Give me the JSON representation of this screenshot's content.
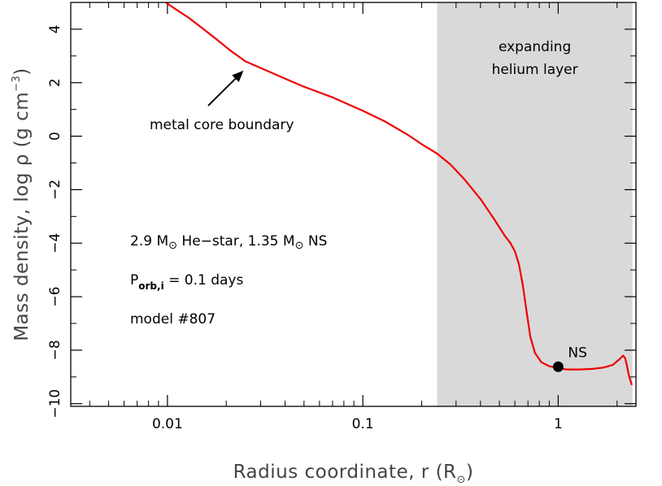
{
  "chart_data": {
    "type": "line",
    "xscale": "log",
    "xlim": [
      0.0032,
      2.5
    ],
    "ylim": [
      -10.1,
      5.0
    ],
    "xlabel": "Radius coordinate, r  (R",
    "xlabel_unit_sub": "⊙",
    "xlabel_close": ")",
    "ylabel": "Mass density, log ρ   (g cm",
    "ylabel_sup": "−3",
    "ylabel_close": ")",
    "x_ticks_major": [
      {
        "value": 0.01,
        "label": "0.01"
      },
      {
        "value": 0.1,
        "label": "0.1"
      },
      {
        "value": 1,
        "label": "1"
      }
    ],
    "y_ticks_major": [
      {
        "value": 4,
        "label": "4"
      },
      {
        "value": 2,
        "label": "2"
      },
      {
        "value": 0,
        "label": "0"
      },
      {
        "value": -2,
        "label": "−2"
      },
      {
        "value": -4,
        "label": "−4"
      },
      {
        "value": -6,
        "label": "−6"
      },
      {
        "value": -8,
        "label": "−8"
      },
      {
        "value": -10,
        "label": "−10"
      }
    ],
    "series": [
      {
        "color": "#ee0000",
        "x": [
          0.0098,
          0.011,
          0.013,
          0.015,
          0.018,
          0.021,
          0.024,
          0.025,
          0.03,
          0.04,
          0.05,
          0.07,
          0.1,
          0.13,
          0.17,
          0.2,
          0.24,
          0.28,
          0.33,
          0.4,
          0.47,
          0.53,
          0.57,
          0.6,
          0.63,
          0.66,
          0.69,
          0.72,
          0.76,
          0.82,
          0.9,
          0.97,
          1.02,
          1.1,
          1.3,
          1.5,
          1.7,
          1.9,
          2.05,
          2.15,
          2.2,
          2.25,
          2.3,
          2.38
        ],
        "y": [
          5.0,
          4.75,
          4.4,
          4.05,
          3.6,
          3.2,
          2.9,
          2.8,
          2.55,
          2.15,
          1.85,
          1.45,
          0.95,
          0.55,
          0.05,
          -0.3,
          -0.65,
          -1.05,
          -1.6,
          -2.35,
          -3.1,
          -3.7,
          -4.0,
          -4.3,
          -4.8,
          -5.6,
          -6.6,
          -7.5,
          -8.1,
          -8.45,
          -8.6,
          -8.65,
          -8.68,
          -8.72,
          -8.72,
          -8.7,
          -8.65,
          -8.55,
          -8.35,
          -8.2,
          -8.3,
          -8.6,
          -8.95,
          -9.3
        ]
      }
    ],
    "shaded_region": {
      "x_start": 0.24,
      "x_end": 2.4,
      "color": "#d9d9d9",
      "label_line1": "expanding",
      "label_line2": "helium layer"
    },
    "marker": {
      "x": 1.0,
      "y": -8.62,
      "label": "NS"
    },
    "arrow": {
      "label": "metal core boundary",
      "to_x": 0.0245,
      "to_y": 2.45
    },
    "legend_text": {
      "line1_pre": "2.9 M",
      "line1_sym": "⊙",
      "line1_mid": " He−star, 1.35 M",
      "line1_sym2": "⊙",
      "line1_post": " NS",
      "line2_pre": "P",
      "line2_sub": "orb,i",
      "line2_post": " = 0.1 days",
      "line3": "model #807"
    }
  }
}
